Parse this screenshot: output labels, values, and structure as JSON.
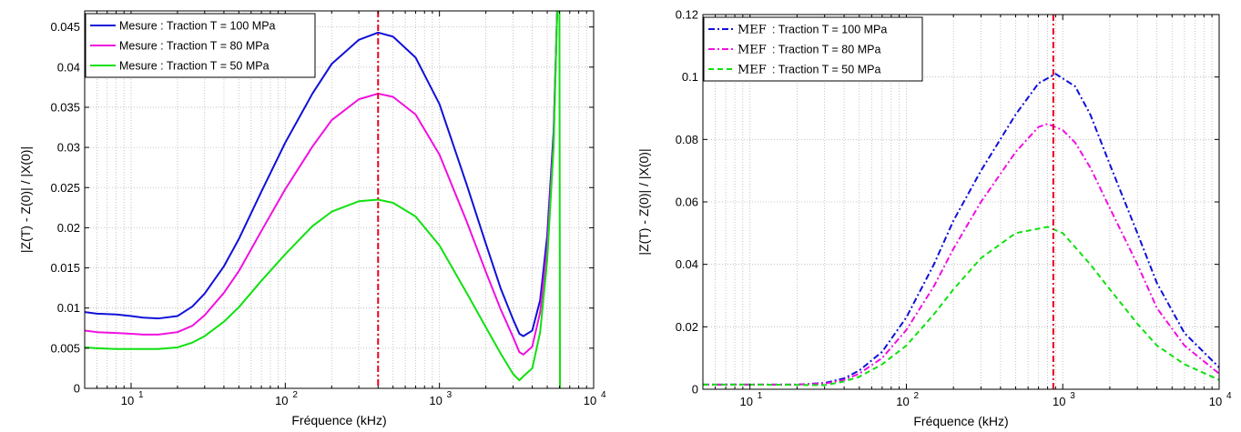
{
  "chart_data": [
    {
      "type": "line",
      "xscale": "log",
      "xlabel": "Fréquence (kHz)",
      "ylabel": "|Z(T) - Z(0)| / |X(0)|",
      "xlim": [
        5,
        10000
      ],
      "ylim": [
        0,
        0.047
      ],
      "xticks": [
        10,
        100,
        1000,
        10000
      ],
      "xtick_labels": [
        "10",
        "10",
        "10",
        "10"
      ],
      "xtick_exponents": [
        "1",
        "2",
        "3",
        "4"
      ],
      "yticks": [
        0,
        0.005,
        0.01,
        0.015,
        0.02,
        0.025,
        0.03,
        0.035,
        0.04,
        0.045
      ],
      "ytick_labels": [
        "0",
        "0.005",
        "0.01",
        "0.015",
        "0.02",
        "0.025",
        "0.03",
        "0.035",
        "0.04",
        "0.045"
      ],
      "grid": true,
      "legend_position": "top-left",
      "vline": {
        "x": 400,
        "color": "#e8001c",
        "style": "dash-dot"
      },
      "series": [
        {
          "name": "Mesure : Traction T = 100 MPa",
          "legend_prefix": "",
          "color": "#1010d8",
          "style": "solid",
          "x": [
            5,
            6,
            8,
            10,
            12,
            15,
            20,
            25,
            30,
            40,
            50,
            70,
            100,
            150,
            200,
            300,
            400,
            500,
            700,
            1000,
            1500,
            2000,
            2500,
            3000,
            3300,
            3500,
            4000,
            4500,
            5000,
            5500,
            5800
          ],
          "values": [
            0.0095,
            0.0093,
            0.0092,
            0.009,
            0.0088,
            0.0087,
            0.009,
            0.0102,
            0.0118,
            0.0152,
            0.0186,
            0.0245,
            0.0306,
            0.0367,
            0.0404,
            0.0434,
            0.0443,
            0.0438,
            0.0412,
            0.0354,
            0.0254,
            0.018,
            0.0124,
            0.0086,
            0.0068,
            0.0065,
            0.0072,
            0.011,
            0.019,
            0.032,
            0.047
          ]
        },
        {
          "name": "Mesure : Traction T = 80 MPa",
          "legend_prefix": "",
          "color": "#f010e0",
          "style": "solid",
          "x": [
            5,
            6,
            8,
            10,
            12,
            15,
            20,
            25,
            30,
            40,
            50,
            70,
            100,
            150,
            200,
            300,
            400,
            500,
            700,
            1000,
            1500,
            2000,
            2500,
            3000,
            3300,
            3500,
            4000,
            4500,
            5000,
            5500,
            5800
          ],
          "values": [
            0.0072,
            0.007,
            0.0069,
            0.0068,
            0.0067,
            0.0067,
            0.007,
            0.0078,
            0.0091,
            0.0119,
            0.0146,
            0.0196,
            0.0248,
            0.0301,
            0.0334,
            0.036,
            0.0367,
            0.0363,
            0.0341,
            0.0291,
            0.0208,
            0.0145,
            0.0098,
            0.0064,
            0.0045,
            0.0042,
            0.0052,
            0.0095,
            0.0175,
            0.031,
            0.047
          ]
        },
        {
          "name": "Mesure : Traction T = 50 MPa",
          "legend_prefix": "",
          "color": "#10e010",
          "style": "solid",
          "x": [
            5,
            6,
            8,
            10,
            12,
            15,
            20,
            25,
            30,
            40,
            50,
            70,
            100,
            150,
            200,
            300,
            400,
            500,
            700,
            1000,
            1500,
            2000,
            2500,
            3000,
            3300,
            3500,
            4000,
            4500,
            5000,
            5500,
            5800,
            5900,
            6000,
            6050
          ],
          "values": [
            0.0051,
            0.005,
            0.0049,
            0.0049,
            0.0049,
            0.0049,
            0.0051,
            0.0057,
            0.0065,
            0.0083,
            0.0101,
            0.0134,
            0.0167,
            0.0202,
            0.022,
            0.0233,
            0.0235,
            0.0231,
            0.0214,
            0.0178,
            0.0119,
            0.0076,
            0.0043,
            0.0018,
            0.001,
            0.0015,
            0.0025,
            0.007,
            0.016,
            0.03,
            0.047,
            0.047,
            0.047,
            0
          ]
        }
      ]
    },
    {
      "type": "line",
      "xscale": "log",
      "xlabel": "Fréquence (kHz)",
      "ylabel": "|Z(T) - Z(0)| / |X(0)|",
      "xlim": [
        5,
        10000
      ],
      "ylim": [
        0,
        0.12
      ],
      "xticks": [
        10,
        100,
        1000,
        10000
      ],
      "xtick_labels": [
        "10",
        "10",
        "10",
        "10"
      ],
      "xtick_exponents": [
        "1",
        "2",
        "3",
        "4"
      ],
      "yticks": [
        0,
        0.02,
        0.04,
        0.06,
        0.08,
        0.1,
        0.12
      ],
      "ytick_labels": [
        "0",
        "0.02",
        "0.04",
        "0.06",
        "0.08",
        "0.1",
        "0.12"
      ],
      "grid": true,
      "legend_position": "top-left",
      "vline": {
        "x": 870,
        "color": "#e8001c",
        "style": "dash-dot"
      },
      "series": [
        {
          "name": ": Traction T = 100 MPa",
          "legend_prefix": "MEF",
          "color": "#1010d8",
          "style": "dash-dot",
          "x": [
            5,
            10,
            20,
            30,
            40,
            50,
            70,
            100,
            150,
            200,
            300,
            500,
            700,
            900,
            1200,
            1500,
            2000,
            3000,
            4000,
            6000,
            10000
          ],
          "values": [
            0.0015,
            0.0015,
            0.0015,
            0.002,
            0.0035,
            0.006,
            0.012,
            0.023,
            0.04,
            0.054,
            0.07,
            0.088,
            0.098,
            0.101,
            0.097,
            0.088,
            0.072,
            0.05,
            0.034,
            0.018,
            0.007
          ]
        },
        {
          "name": ": Traction T = 80 MPa",
          "legend_prefix": "MEF",
          "color": "#f010e0",
          "style": "dash-dot",
          "x": [
            5,
            10,
            20,
            30,
            40,
            50,
            70,
            100,
            150,
            200,
            300,
            500,
            700,
            800,
            1000,
            1200,
            1500,
            2000,
            3000,
            4000,
            6000,
            10000
          ],
          "values": [
            0.0015,
            0.0015,
            0.0015,
            0.0018,
            0.003,
            0.005,
            0.01,
            0.019,
            0.033,
            0.045,
            0.06,
            0.076,
            0.084,
            0.085,
            0.083,
            0.079,
            0.071,
            0.058,
            0.04,
            0.026,
            0.014,
            0.005
          ]
        },
        {
          "name": ": Traction T = 50 MPa",
          "legend_prefix": "MEF",
          "color": "#10e010",
          "style": "dashed",
          "x": [
            5,
            10,
            20,
            30,
            40,
            50,
            70,
            100,
            150,
            200,
            300,
            500,
            800,
            1000,
            1500,
            2000,
            3000,
            4000,
            6000,
            10000
          ],
          "values": [
            0.0015,
            0.0015,
            0.0014,
            0.0013,
            0.0025,
            0.004,
            0.008,
            0.014,
            0.024,
            0.032,
            0.042,
            0.05,
            0.052,
            0.05,
            0.04,
            0.032,
            0.021,
            0.014,
            0.008,
            0.003
          ]
        }
      ]
    }
  ]
}
